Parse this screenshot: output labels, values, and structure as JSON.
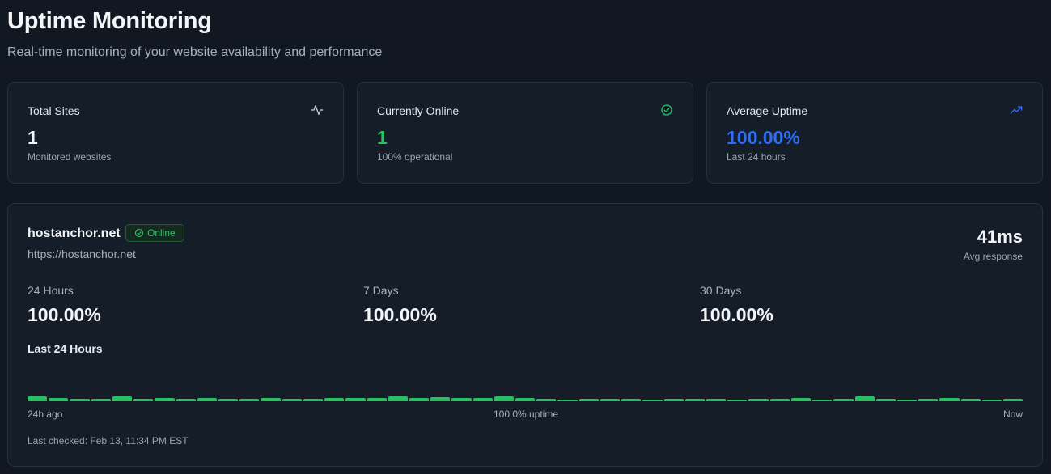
{
  "header": {
    "title": "Uptime Monitoring",
    "subtitle": "Real-time monitoring of your website availability and performance"
  },
  "stats": [
    {
      "label": "Total Sites",
      "value": "1",
      "sub": "Monitored websites",
      "icon": "activity-icon",
      "color": "#f3f5f8"
    },
    {
      "label": "Currently Online",
      "value": "1",
      "sub": "100% operational",
      "icon": "check-circle-icon",
      "color": "#22c55e"
    },
    {
      "label": "Average Uptime",
      "value": "100.00%",
      "sub": "Last 24 hours",
      "icon": "trending-up-icon",
      "color": "#2f6df6"
    }
  ],
  "site": {
    "name": "hostanchor.net",
    "status": "Online",
    "url": "https://hostanchor.net",
    "avg_response": "41ms",
    "avg_response_label": "Avg response",
    "periods": [
      {
        "label": "24 Hours",
        "value": "100.00%"
      },
      {
        "label": "7 Days",
        "value": "100.00%"
      },
      {
        "label": "30 Days",
        "value": "100.00%"
      }
    ],
    "history_title": "Last 24 Hours",
    "history_levels": [
      6,
      4,
      3,
      3,
      6,
      3,
      4,
      3,
      4,
      3,
      3,
      4,
      3,
      3,
      4,
      4,
      4,
      6,
      4,
      5,
      4,
      4,
      6,
      4,
      3,
      2,
      3,
      3,
      3,
      2,
      3,
      3,
      3,
      2,
      3,
      3,
      4,
      2,
      3,
      6,
      3,
      2,
      3,
      4,
      3,
      2,
      3
    ],
    "axis_start": "24h ago",
    "axis_middle": "100.0% uptime",
    "axis_end": "Now",
    "last_checked": "Last checked: Feb 13, 11:34 PM EST"
  },
  "colors": {
    "accent_green": "#22c55e",
    "accent_blue": "#2f6df6"
  }
}
